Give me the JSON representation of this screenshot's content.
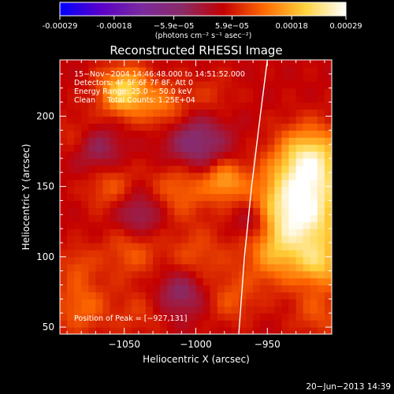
{
  "colorbar": {
    "tick_labels": [
      "-0.00029",
      "-0.00018",
      "−5.9e−05",
      "5.9e−05",
      "0.00018",
      "0.00029"
    ],
    "tick_values": [
      -0.00029,
      -0.00018,
      -5.9e-05,
      5.9e-05,
      0.00018,
      0.00029
    ],
    "range": [
      -0.00029,
      0.00029
    ],
    "unit_label": "(photons cm⁻² s⁻¹ asec⁻²)",
    "colors": [
      "#0000ff",
      "#5a00c8",
      "#7a2a9e",
      "#8a2a66",
      "#c40000",
      "#ff6a00",
      "#ffd23c",
      "#ffffff"
    ]
  },
  "chart_data": {
    "type": "heatmap",
    "title": "Reconstructed RHESSI Image",
    "xlabel": "Heliocentric X (arcsec)",
    "ylabel": "Heliocentric Y (arcsec)",
    "xlim": [
      -1095,
      -905
    ],
    "ylim": [
      45,
      240
    ],
    "x_ticks": [
      -1050,
      -1000,
      -950
    ],
    "x_tick_labels": [
      "−1050",
      "−1000",
      "−950"
    ],
    "y_ticks": [
      50,
      100,
      150,
      200
    ],
    "y_tick_labels": [
      "50",
      "100",
      "150",
      "200"
    ],
    "annotations": [
      "15−Nov−2004 14:46:48.000 to 14:51:52.000",
      "Detectors: 4F 5F 6F 7F 8F, Att 0",
      "Energy Range: 25.0 − 50.0 keV",
      "Clean     Total Counts: 1.25E+04"
    ],
    "peak_label": "Position of Peak = [−927,131]",
    "peak": {
      "x": -927,
      "y": 131
    },
    "limb": [
      {
        "x": -970,
        "y": 45
      },
      {
        "x": -966,
        "y": 100
      },
      {
        "x": -961,
        "y": 150
      },
      {
        "x": -955,
        "y": 200
      },
      {
        "x": -950,
        "y": 240
      }
    ],
    "blobs": [
      {
        "x": -928,
        "y": 133,
        "v": 0.00029,
        "s": 22
      },
      {
        "x": -920,
        "y": 170,
        "v": 0.00022,
        "s": 16
      },
      {
        "x": -945,
        "y": 100,
        "v": 0.00012,
        "s": 16
      },
      {
        "x": -912,
        "y": 95,
        "v": 0.00016,
        "s": 12
      },
      {
        "x": -915,
        "y": 60,
        "v": 0.0001,
        "s": 12
      },
      {
        "x": -1050,
        "y": 218,
        "v": 0.00022,
        "s": 12
      },
      {
        "x": -1022,
        "y": 207,
        "v": 0.00013,
        "s": 12
      },
      {
        "x": -990,
        "y": 213,
        "v": 8e-05,
        "s": 12
      },
      {
        "x": -1080,
        "y": 185,
        "v": 0.0001,
        "s": 12
      },
      {
        "x": -1060,
        "y": 150,
        "v": 0.00011,
        "s": 12
      },
      {
        "x": -1010,
        "y": 150,
        "v": 0.00013,
        "s": 15
      },
      {
        "x": -980,
        "y": 155,
        "v": 0.00016,
        "s": 10
      },
      {
        "x": -1045,
        "y": 105,
        "v": 0.00011,
        "s": 14
      },
      {
        "x": -1000,
        "y": 100,
        "v": 0.0001,
        "s": 14
      },
      {
        "x": -1083,
        "y": 95,
        "v": 9e-05,
        "s": 10
      },
      {
        "x": -1080,
        "y": 65,
        "v": 0.00012,
        "s": 14
      },
      {
        "x": -975,
        "y": 70,
        "v": 0.0001,
        "s": 12
      },
      {
        "x": -1040,
        "y": 60,
        "v": 8e-05,
        "s": 12
      },
      {
        "x": -1070,
        "y": 178,
        "v": -6e-05,
        "s": 12
      },
      {
        "x": -1000,
        "y": 180,
        "v": -7e-05,
        "s": 16
      },
      {
        "x": -1040,
        "y": 130,
        "v": -5e-05,
        "s": 12
      },
      {
        "x": -960,
        "y": 125,
        "v": -6e-05,
        "s": 10
      },
      {
        "x": -1010,
        "y": 75,
        "v": -5e-05,
        "s": 12
      }
    ]
  },
  "footer": {
    "date": "20−Jun−2013 14:39"
  }
}
